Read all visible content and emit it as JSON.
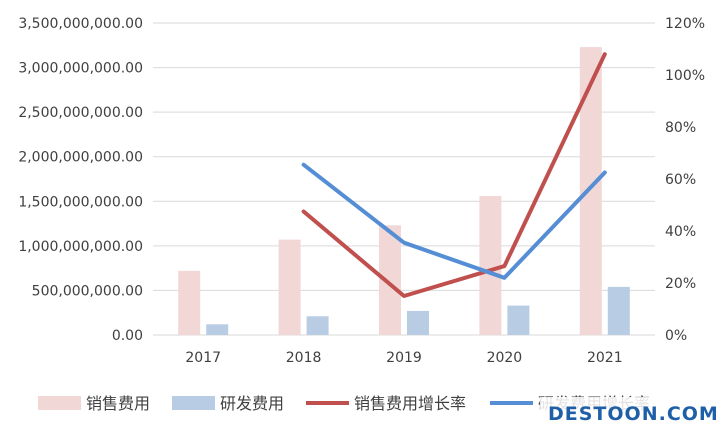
{
  "chart_data": {
    "type": "bar+line",
    "categories": [
      "2017",
      "2018",
      "2019",
      "2020",
      "2021"
    ],
    "bar_series": [
      {
        "name": "销售费用",
        "color": "#f2d7d7",
        "values": [
          720000000,
          1070000000,
          1230000000,
          1560000000,
          3230000000
        ]
      },
      {
        "name": "研发费用",
        "color": "#b8cce4",
        "values": [
          120000000,
          210000000,
          270000000,
          330000000,
          540000000
        ]
      }
    ],
    "line_series": [
      {
        "name": "销售费用增长率",
        "color": "#c0504d",
        "values": [
          null,
          0.475,
          0.15,
          0.265,
          1.08
        ]
      },
      {
        "name": "研发费用增长率",
        "color": "#558ed5",
        "values": [
          null,
          0.655,
          0.355,
          0.22,
          0.625
        ]
      }
    ],
    "y_left": {
      "min": 0,
      "max": 3500000000,
      "step": 500000000,
      "tick_labels": [
        "0.00",
        "500,000,000.00",
        "1,000,000,000.00",
        "1,500,000,000.00",
        "2,000,000,000.00",
        "2,500,000,000.00",
        "3,000,000,000.00",
        "3,500,000,000.00"
      ]
    },
    "y_right": {
      "min": 0,
      "max": 1.2,
      "step": 0.2,
      "tick_labels": [
        "0%",
        "20%",
        "40%",
        "60%",
        "80%",
        "100%",
        "120%"
      ]
    },
    "grid": true,
    "legend_position": "bottom"
  },
  "watermark": {
    "text": "DESTOON.COM"
  }
}
